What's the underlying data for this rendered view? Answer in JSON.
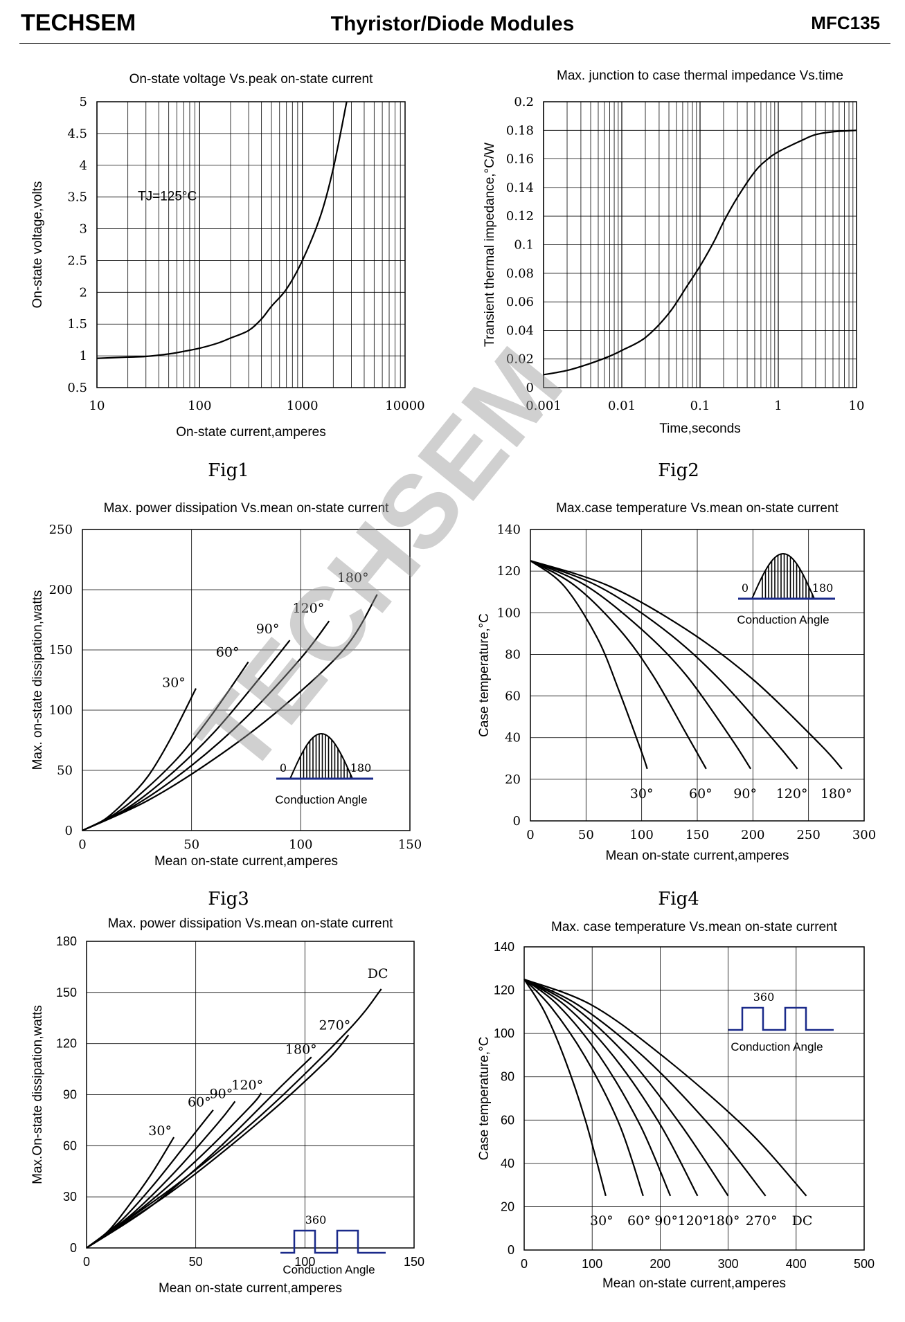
{
  "header": {
    "brand": "TECHSEM",
    "title": "Thyristor/Diode Modules",
    "part": "MFC135"
  },
  "watermark": "TECHSEM",
  "figures": [
    "Fig1",
    "Fig2",
    "Fig3",
    "Fig4"
  ],
  "chart_data": [
    {
      "type": "line",
      "title": "On-state voltage Vs.peak on-state current",
      "xlabel": "On-state current,amperes",
      "ylabel": "On-state voltage,volts",
      "xscale": "log",
      "xlim": [
        10,
        10000
      ],
      "ylim": [
        0.5,
        5
      ],
      "xticks": [
        "10",
        "100",
        "1000",
        "10000"
      ],
      "yticks": [
        "0.5",
        "1",
        "1.5",
        "2",
        "2.5",
        "3",
        "3.5",
        "4",
        "4.5",
        "5"
      ],
      "grid": true,
      "annotation": "TJ=125°C",
      "series": [
        {
          "x": [
            10,
            20,
            30,
            50,
            70,
            100,
            150,
            200,
            300,
            400,
            500,
            700,
            1000,
            1500,
            2000,
            2700
          ],
          "y": [
            0.96,
            0.98,
            0.99,
            1.03,
            1.07,
            1.12,
            1.2,
            1.28,
            1.4,
            1.58,
            1.78,
            2.05,
            2.5,
            3.2,
            3.95,
            5.0
          ]
        }
      ]
    },
    {
      "type": "line",
      "title": "Max. junction to case thermal impedance Vs.time",
      "xlabel": "Time,seconds",
      "ylabel": "Transient thermal impedance,°C/W",
      "xscale": "log",
      "xlim": [
        0.001,
        10
      ],
      "ylim": [
        0,
        0.2
      ],
      "xticks": [
        "0.001",
        "0.01",
        "0.1",
        "1",
        "10"
      ],
      "yticks": [
        "0",
        "0.02",
        "0.04",
        "0.06",
        "0.08",
        "0.1",
        "0.12",
        "0.14",
        "0.16",
        "0.18",
        "0.2"
      ],
      "grid": true,
      "series": [
        {
          "x": [
            0.001,
            0.002,
            0.004,
            0.007,
            0.01,
            0.02,
            0.04,
            0.07,
            0.1,
            0.15,
            0.2,
            0.3,
            0.5,
            0.7,
            1,
            2,
            3,
            5,
            10
          ],
          "y": [
            0.009,
            0.012,
            0.017,
            0.022,
            0.026,
            0.035,
            0.052,
            0.072,
            0.085,
            0.102,
            0.116,
            0.133,
            0.151,
            0.159,
            0.165,
            0.173,
            0.177,
            0.179,
            0.18
          ]
        }
      ]
    },
    {
      "type": "line",
      "title": "Max. power dissipation Vs.mean on-state current",
      "xlabel": "Mean on-state current,amperes",
      "ylabel": "Max. on-state dissipation,watts",
      "xlim": [
        0,
        150
      ],
      "ylim": [
        0,
        250
      ],
      "xticks": [
        "0",
        "50",
        "100",
        "150"
      ],
      "yticks": [
        "0",
        "50",
        "100",
        "150",
        "200",
        "250"
      ],
      "grid": true,
      "inset": {
        "kind": "sine",
        "left": "0",
        "right": "180",
        "caption": "Conduction Angle"
      },
      "series": [
        {
          "label": "30°",
          "x": [
            0,
            10,
            20,
            30,
            40,
            52
          ],
          "y": [
            0,
            9,
            25,
            45,
            75,
            118
          ]
        },
        {
          "label": "60°",
          "x": [
            0,
            15,
            30,
            45,
            60,
            76
          ],
          "y": [
            0,
            14,
            36,
            63,
            98,
            140
          ]
        },
        {
          "label": "90°",
          "x": [
            0,
            20,
            40,
            60,
            80,
            95
          ],
          "y": [
            0,
            18,
            46,
            81,
            124,
            158
          ]
        },
        {
          "label": "120°",
          "x": [
            0,
            25,
            50,
            75,
            100,
            113
          ],
          "y": [
            0,
            22,
            54,
            94,
            143,
            174
          ]
        },
        {
          "label": "180°",
          "x": [
            0,
            30,
            60,
            90,
            120,
            135
          ],
          "y": [
            0,
            25,
            59,
            100,
            151,
            196
          ]
        }
      ]
    },
    {
      "type": "line",
      "title": "Max.case temperature Vs.mean on-state current",
      "xlabel": "Mean on-state current,amperes",
      "ylabel": "Case temperature,°C",
      "xlim": [
        0,
        300
      ],
      "ylim": [
        0,
        140
      ],
      "xticks": [
        "0",
        "50",
        "100",
        "150",
        "200",
        "250",
        "300"
      ],
      "yticks": [
        "0",
        "20",
        "40",
        "60",
        "80",
        "100",
        "120",
        "140"
      ],
      "grid": true,
      "inset": {
        "kind": "sine",
        "left": "0",
        "right": "180",
        "caption": "Conduction Angle"
      },
      "series": [
        {
          "label": "30°",
          "x": [
            0,
            30,
            60,
            80,
            100,
            105
          ],
          "y": [
            125,
            113,
            88,
            62,
            33,
            25
          ]
        },
        {
          "label": "60°",
          "x": [
            0,
            40,
            80,
            110,
            140,
            158
          ],
          "y": [
            125,
            113,
            92,
            70,
            42,
            25
          ]
        },
        {
          "label": "90°",
          "x": [
            0,
            50,
            100,
            140,
            180,
            198
          ],
          "y": [
            125,
            113,
            92,
            70,
            40,
            25
          ]
        },
        {
          "label": "120°",
          "x": [
            0,
            60,
            120,
            170,
            220,
            240
          ],
          "y": [
            125,
            113,
            92,
            68,
            38,
            25
          ]
        },
        {
          "label": "180°",
          "x": [
            0,
            70,
            140,
            200,
            260,
            280
          ],
          "y": [
            125,
            113,
            92,
            68,
            37,
            25
          ]
        }
      ]
    },
    {
      "type": "line",
      "title": "Max. power dissipation Vs.mean on-state current",
      "xlabel": "Mean on-state current,amperes",
      "ylabel": "Max.On-state dissipation,watts",
      "xlim": [
        0,
        150
      ],
      "ylim": [
        0,
        180
      ],
      "xticks": [
        "0",
        "50",
        "100",
        "150"
      ],
      "yticks": [
        "0",
        "30",
        "60",
        "90",
        "120",
        "150",
        "180"
      ],
      "grid": true,
      "inset": {
        "kind": "square",
        "top": "360",
        "caption": "Conduction Angle"
      },
      "series": [
        {
          "label": "30°",
          "x": [
            0,
            10,
            20,
            30,
            40
          ],
          "y": [
            0,
            10,
            26,
            44,
            65
          ]
        },
        {
          "label": "60°",
          "x": [
            0,
            15,
            30,
            45,
            58
          ],
          "y": [
            0,
            15,
            36,
            60,
            81
          ]
        },
        {
          "label": "90°",
          "x": [
            0,
            20,
            40,
            60,
            68
          ],
          "y": [
            0,
            19,
            44,
            73,
            86
          ]
        },
        {
          "label": "120°",
          "x": [
            0,
            25,
            50,
            75,
            80
          ],
          "y": [
            0,
            23,
            51,
            83,
            91
          ]
        },
        {
          "label": "180°",
          "x": [
            0,
            30,
            60,
            90,
            103
          ],
          "y": [
            0,
            25,
            58,
            96,
            112
          ]
        },
        {
          "label": "270°",
          "x": [
            0,
            40,
            80,
            110,
            120
          ],
          "y": [
            0,
            34,
            75,
            110,
            125
          ]
        },
        {
          "label": "DC",
          "x": [
            0,
            40,
            80,
            120,
            135
          ],
          "y": [
            0,
            36,
            78,
            128,
            152
          ]
        }
      ]
    },
    {
      "type": "line",
      "title": "Max. case temperature Vs.mean on-state current",
      "xlabel": "Mean on-state current,amperes",
      "ylabel": "Case temperature,°C",
      "xlim": [
        0,
        500
      ],
      "ylim": [
        0,
        140
      ],
      "xticks": [
        "0",
        "100",
        "200",
        "300",
        "400",
        "500"
      ],
      "yticks": [
        "0",
        "20",
        "40",
        "60",
        "80",
        "100",
        "120",
        "140"
      ],
      "grid": true,
      "inset": {
        "kind": "square",
        "top": "360",
        "caption": "Conduction Angle"
      },
      "series": [
        {
          "label": "30°",
          "x": [
            0,
            30,
            60,
            90,
            120
          ],
          "y": [
            125,
            110,
            88,
            60,
            25
          ]
        },
        {
          "label": "60°",
          "x": [
            0,
            40,
            90,
            140,
            175
          ],
          "y": [
            125,
            112,
            89,
            58,
            25
          ]
        },
        {
          "label": "90°",
          "x": [
            0,
            50,
            110,
            170,
            215
          ],
          "y": [
            125,
            113,
            90,
            58,
            25
          ]
        },
        {
          "label": "120°",
          "x": [
            0,
            60,
            130,
            200,
            255
          ],
          "y": [
            125,
            113,
            90,
            58,
            25
          ]
        },
        {
          "label": "180°",
          "x": [
            0,
            70,
            150,
            230,
            300
          ],
          "y": [
            125,
            113,
            90,
            58,
            25
          ]
        },
        {
          "label": "270°",
          "x": [
            0,
            80,
            180,
            280,
            355
          ],
          "y": [
            125,
            113,
            88,
            55,
            25
          ]
        },
        {
          "label": "DC",
          "x": [
            0,
            100,
            210,
            330,
            415
          ],
          "y": [
            125,
            113,
            88,
            55,
            25
          ]
        }
      ]
    }
  ]
}
